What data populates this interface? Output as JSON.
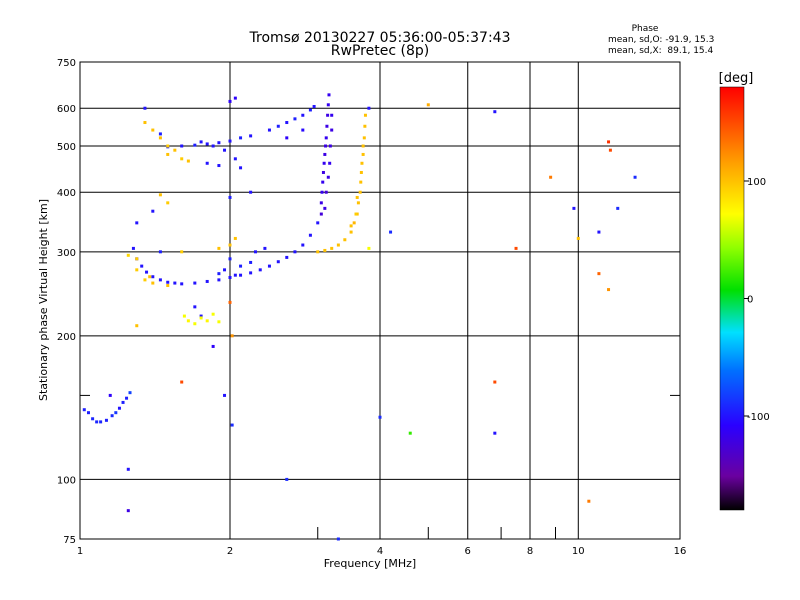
{
  "chart_data": {
    "type": "scatter",
    "title": "Tromsø 20130227 05:36:00-05:37:43",
    "subtitle": "RwPretec (8p)",
    "xlabel": "Frequency [MHz]",
    "ylabel": "Stationary phase Virtual Height [km]",
    "x_scale": "log",
    "y_scale": "log",
    "xlim": [
      1,
      16
    ],
    "ylim": [
      75,
      750
    ],
    "grid": true,
    "x_ticks": [
      1,
      2,
      4,
      6,
      8,
      10,
      16
    ],
    "x_minor_ticks": [
      3,
      5,
      7,
      9
    ],
    "y_ticks": [
      75,
      100,
      200,
      300,
      400,
      500,
      600,
      750
    ],
    "y_minor_ticks": [
      150
    ],
    "stats": {
      "title": "Phase",
      "o_line": "mean, sd,O: -91.9, 15.3",
      "x_line": "mean, sd,X:  89.1, 15.4"
    },
    "colorbar": {
      "label": "[deg]",
      "min": -180,
      "max": 180,
      "ticks": [
        100,
        0,
        -100
      ]
    },
    "series": [
      {
        "points": [
          [
            1.02,
            140,
            -95
          ],
          [
            1.04,
            138,
            -95
          ],
          [
            1.06,
            134,
            -92
          ],
          [
            1.08,
            132,
            -92
          ],
          [
            1.1,
            132,
            -92
          ],
          [
            1.13,
            133,
            -95
          ],
          [
            1.16,
            136,
            -90
          ],
          [
            1.18,
            138,
            -85
          ],
          [
            1.2,
            141,
            -100
          ],
          [
            1.22,
            145,
            -95
          ],
          [
            1.24,
            148,
            -95
          ],
          [
            1.26,
            152,
            -80
          ],
          [
            1.28,
            305,
            -100
          ],
          [
            1.3,
            290,
            -100
          ],
          [
            1.33,
            280,
            -100
          ],
          [
            1.36,
            272,
            -100
          ],
          [
            1.4,
            266,
            -100
          ],
          [
            1.45,
            262,
            -100
          ],
          [
            1.5,
            259,
            -100
          ],
          [
            1.55,
            258,
            -100
          ],
          [
            1.6,
            257,
            -100
          ],
          [
            1.7,
            258,
            -100
          ],
          [
            1.8,
            260,
            -100
          ],
          [
            1.9,
            262,
            -100
          ],
          [
            2.0,
            265,
            -100
          ],
          [
            2.1,
            268,
            -100
          ],
          [
            2.2,
            271,
            -100
          ],
          [
            2.3,
            275,
            -100
          ],
          [
            2.4,
            280,
            -100
          ],
          [
            2.5,
            286,
            -100
          ],
          [
            2.6,
            292,
            -100
          ],
          [
            2.7,
            300,
            -100
          ],
          [
            2.8,
            310,
            -100
          ],
          [
            2.9,
            325,
            -100
          ],
          [
            3.0,
            345,
            -100
          ],
          [
            2.05,
            268,
            -100
          ],
          [
            2.1,
            280,
            -95
          ],
          [
            2.2,
            285,
            -95
          ],
          [
            2.25,
            300,
            -100
          ],
          [
            2.35,
            305,
            -100
          ],
          [
            1.9,
            270,
            -95
          ],
          [
            1.95,
            275,
            -100
          ],
          [
            2.0,
            290,
            -95
          ],
          [
            3.05,
            380,
            -120
          ],
          [
            3.06,
            400,
            -115
          ],
          [
            3.07,
            420,
            -115
          ],
          [
            3.08,
            440,
            -120
          ],
          [
            3.09,
            460,
            -115
          ],
          [
            3.1,
            480,
            -120
          ],
          [
            3.11,
            500,
            -120
          ],
          [
            3.12,
            520,
            -115
          ],
          [
            3.13,
            550,
            -120
          ],
          [
            3.14,
            580,
            -120
          ],
          [
            3.15,
            610,
            -115
          ],
          [
            3.16,
            640,
            -115
          ],
          [
            3.05,
            360,
            -125
          ],
          [
            3.1,
            370,
            -120
          ],
          [
            3.12,
            400,
            -125
          ],
          [
            3.15,
            430,
            -120
          ],
          [
            3.17,
            460,
            -115
          ],
          [
            3.18,
            500,
            -120
          ],
          [
            3.2,
            540,
            -120
          ],
          [
            3.2,
            580,
            -115
          ],
          [
            1.5,
            498,
            -95
          ],
          [
            1.6,
            500,
            -100
          ],
          [
            1.7,
            502,
            -95
          ],
          [
            1.8,
            505,
            -100
          ],
          [
            1.9,
            508,
            -100
          ],
          [
            2.0,
            512,
            -100
          ],
          [
            2.1,
            520,
            -95
          ],
          [
            2.2,
            525,
            -100
          ],
          [
            1.45,
            530,
            -95
          ],
          [
            1.75,
            510,
            -100
          ],
          [
            1.85,
            500,
            -100
          ],
          [
            1.95,
            490,
            -100
          ],
          [
            2.05,
            470,
            -100
          ],
          [
            2.1,
            450,
            -100
          ],
          [
            1.8,
            460,
            -100
          ],
          [
            1.9,
            455,
            -100
          ],
          [
            2.4,
            540,
            -100
          ],
          [
            2.5,
            550,
            -95
          ],
          [
            2.6,
            560,
            -100
          ],
          [
            2.7,
            570,
            -95
          ],
          [
            2.8,
            580,
            -100
          ],
          [
            2.9,
            595,
            -95
          ],
          [
            2.95,
            605,
            -100
          ],
          [
            2.0,
            620,
            -110
          ],
          [
            2.05,
            630,
            -110
          ],
          [
            1.3,
            345,
            -100
          ],
          [
            1.4,
            365,
            -100
          ],
          [
            1.45,
            300,
            -95
          ],
          [
            1.7,
            230,
            -100
          ],
          [
            1.75,
            220,
            -100
          ],
          [
            1.85,
            190,
            -110
          ],
          [
            1.95,
            150,
            -100
          ],
          [
            2.02,
            130,
            -90
          ],
          [
            1.35,
            600,
            -100
          ],
          [
            1.15,
            150,
            -110
          ],
          [
            1.25,
            105,
            -100
          ],
          [
            1.25,
            86,
            -120
          ],
          [
            2.0,
            390,
            -95
          ],
          [
            2.2,
            400,
            -100
          ],
          [
            2.6,
            100,
            -90
          ],
          [
            3.3,
            75,
            -90
          ],
          [
            3.8,
            600,
            -100
          ],
          [
            6.8,
            590,
            -100
          ],
          [
            6.8,
            125,
            -100
          ],
          [
            9.8,
            370,
            -100
          ],
          [
            11.0,
            330,
            -100
          ],
          [
            12.0,
            370,
            -90
          ],
          [
            13.0,
            430,
            -90
          ],
          [
            4.0,
            135,
            -90
          ],
          [
            4.2,
            330,
            -90
          ],
          [
            2.6,
            520,
            -110
          ],
          [
            2.8,
            540,
            -105
          ]
        ]
      },
      {
        "points": [
          [
            3.0,
            300,
            100
          ],
          [
            3.1,
            302,
            100
          ],
          [
            3.2,
            305,
            100
          ],
          [
            3.3,
            310,
            100
          ],
          [
            3.4,
            318,
            100
          ],
          [
            3.5,
            330,
            100
          ],
          [
            3.55,
            345,
            105
          ],
          [
            3.6,
            360,
            100
          ],
          [
            3.62,
            380,
            100
          ],
          [
            3.65,
            400,
            100
          ],
          [
            3.66,
            420,
            100
          ],
          [
            3.67,
            440,
            100
          ],
          [
            3.68,
            460,
            100
          ],
          [
            3.7,
            480,
            100
          ],
          [
            3.7,
            500,
            100
          ],
          [
            3.72,
            520,
            100
          ],
          [
            3.73,
            550,
            100
          ],
          [
            3.74,
            580,
            100
          ],
          [
            3.5,
            340,
            100
          ],
          [
            3.58,
            360,
            95
          ],
          [
            3.6,
            390,
            100
          ],
          [
            1.25,
            295,
            90
          ],
          [
            1.3,
            275,
            95
          ],
          [
            1.35,
            262,
            95
          ],
          [
            1.4,
            258,
            100
          ],
          [
            1.5,
            255,
            100
          ],
          [
            1.3,
            290,
            95
          ],
          [
            1.38,
            266,
            100
          ],
          [
            1.35,
            560,
            100
          ],
          [
            1.4,
            540,
            100
          ],
          [
            1.45,
            520,
            100
          ],
          [
            1.5,
            500,
            95
          ],
          [
            1.55,
            490,
            100
          ],
          [
            1.6,
            470,
            95
          ],
          [
            1.65,
            465,
            100
          ],
          [
            1.5,
            480,
            100
          ],
          [
            1.45,
            395,
            100
          ],
          [
            1.5,
            380,
            95
          ],
          [
            1.62,
            220,
            70
          ],
          [
            1.65,
            215,
            75
          ],
          [
            1.7,
            212,
            70
          ],
          [
            1.75,
            218,
            70
          ],
          [
            1.8,
            215,
            75
          ],
          [
            1.85,
            222,
            70
          ],
          [
            1.9,
            214,
            70
          ],
          [
            1.6,
            300,
            95
          ],
          [
            1.9,
            305,
            100
          ],
          [
            2.0,
            310,
            100
          ],
          [
            2.05,
            320,
            100
          ],
          [
            3.8,
            305,
            70
          ],
          [
            5.0,
            610,
            110
          ],
          [
            7.5,
            305,
            150
          ],
          [
            8.8,
            430,
            130
          ],
          [
            10.0,
            320,
            100
          ],
          [
            11.0,
            270,
            140
          ],
          [
            11.5,
            250,
            120
          ],
          [
            11.5,
            510,
            160
          ],
          [
            11.6,
            490,
            150
          ],
          [
            10.5,
            90,
            130
          ],
          [
            6.8,
            160,
            150
          ],
          [
            4.6,
            125,
            20
          ],
          [
            1.6,
            160,
            150
          ],
          [
            1.3,
            210,
            100
          ],
          [
            2.0,
            235,
            140
          ],
          [
            2.02,
            200,
            120
          ]
        ]
      }
    ]
  }
}
